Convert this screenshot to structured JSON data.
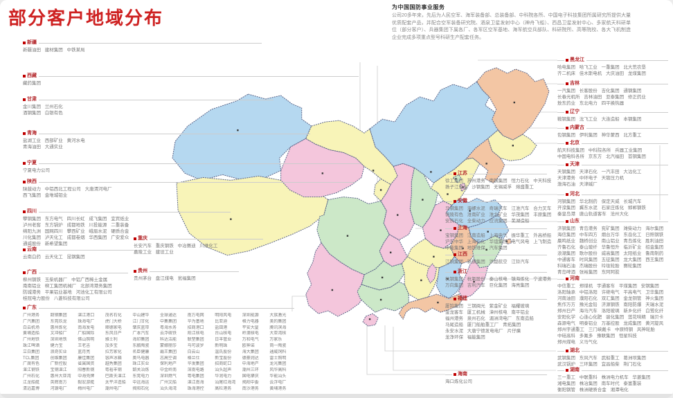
{
  "title": "部分客户地域分布",
  "intro": {
    "heading": "为中国国防事业服务",
    "body": "公司20多年来，先后为人民空军、海军装备部、总装备部、中科院各所、中国电子科技集团所属研究所提供大量优质配套产品，并配合空军装备研究院、酒泉卫星发射中心（神舟飞船）、西昌卫星发射中心、多家航天科研单位（部分客户）、兵器集团下属各厂、各军区空军基地、海军航空兵部队、科研院所、高等院校、各大飞机制造企业完成多项重点型号科研生产配套任务。"
  },
  "colors": {
    "title_red": "#ce2121",
    "label_red": "#b3262a",
    "bullet_red": "#c00000",
    "leader_gray": "#cccccc",
    "body_gray": "#787878",
    "map_stroke": "#5a6488",
    "fill_blue": "#b5d8f0",
    "fill_yellow": "#f8f4b8",
    "fill_pink": "#f4c6dc",
    "fill_salmon": "#f3c6a4",
    "fill_green": "#cce8c8"
  },
  "columns": {
    "left": [
      {
        "id": "xinjiang",
        "label": "新疆",
        "lines": [
          "新疆油田 建材集团 中铁某局"
        ]
      },
      {
        "id": "xizang",
        "label": "西藏",
        "lines": [
          "藏药集团"
        ]
      },
      {
        "id": "gansu",
        "label": "甘肃",
        "lines": [
          "金川集团 兰州石化",
          "酒钢集团 白银有色"
        ]
      },
      {
        "id": "qinghai",
        "label": "青海",
        "lines": [
          "盐湖工业 西部矿业 黄河水电",
          "青海油田 大通实业"
        ]
      },
      {
        "id": "ningxia",
        "label": "宁夏",
        "lines": [
          "宁夏电力公司"
        ]
      },
      {
        "id": "shaanxi",
        "label": "陕西",
        "lines": [
          "陕鼓动力 中铝西北工程公司 大唐渭河电厂",
          "西飞集团 金堆城钼业"
        ]
      },
      {
        "id": "sichuan",
        "label": "四川",
        "lines": [
          "攀钢集团 东方电气 四川长虹 成飞集团 宜宾纸业",
          "泸州老窖 东方锅炉 成都地铁 川投能源 二重装备",
          "绵阳九洲 国网四川 攀西矿业 峨眉水泥 硬质合金",
          "川化集团 泸天化工 成都卷烟 华西集团 广安爱众",
          "通威股份 新希望集团"
        ]
      },
      {
        "id": "yunnan",
        "label": "云南",
        "lines": [
          "云南白药 云天化工 昆钢集团"
        ]
      },
      {
        "id": "guangxi",
        "label": "广西",
        "lines": [
          "柳州钢铁 玉柴机器厂 中铝广西稀土金属",
          "南南铝业 柳工集团机械厂 北部湾港务集团",
          "防城港务 平果铝业基地 河池化工有限公司",
          "桂冠电力股份 八菱科技有限公司"
        ]
      }
    ],
    "inmap": [
      {
        "id": "chongqing",
        "label": "重庆",
        "lines": [
          "长安汽车 重庆钢铁 中冶赛迪 川维化工",
          "嘉陵工业 建设工业"
        ]
      },
      {
        "id": "guizhou",
        "label": "贵州",
        "lines": [
          "贵州茅台 盘江煤电 瓮福集团"
        ]
      }
    ],
    "middle": [
      {
        "id": "jiangsu",
        "label": "江苏",
        "lines": [
          "徐工集团 苏州港务 南钢集团 恒力石化 中天科技",
          "扬子江船业 沙钢集团 无锡威孚 熔盛重工"
        ]
      },
      {
        "id": "anhui",
        "label": "安徽",
        "lines": [
          "马钢集团 海螺水泥 奇瑞汽车 江淮汽车 合力叉车",
          "铜陵有色 淮南矿业 淮北矿业 华茂集团 丰原集团",
          "安庆石化 全柴动力 应流集团 芜湖造船"
        ]
      },
      {
        "id": "shanghai",
        "label": "上海",
        "lines": [
          "宝钢集团 江南造船 上海电气 振华重工 外高桥船",
          "沪东中华 上海石化 华谊集团 电气风电 上飞制造",
          "申能集团 地铁维保 汽车集团"
        ]
      },
      {
        "id": "jiangxi",
        "label": "江西",
        "lines": [
          "江铜集团 新钢集团 洪都航空 江铃汽车"
        ]
      },
      {
        "id": "zhejiang",
        "label": "浙江",
        "lines": [
          "杭钢集团 杭氧股份 秦山核电 镇海炼化 宁波港务",
          "万向集团 吉利汽车 巨化集团 海亮集团"
        ]
      },
      {
        "id": "fujian",
        "label": "福建",
        "lines": [
          "厦钨集团 三钢闽光 紫金矿业 福耀玻璃",
          "金龙客车 厦工机械 漳州核电 南平铝业",
          "福州港务 泉州石化 湄洲湾电厂 东南造船",
          "马尾造船 厦门船舶重工厂 青拓集团",
          "永安水泥 大唐宁德发电电厂 片仔癀",
          "龙净环保 福能集团"
        ]
      },
      {
        "id": "hainan",
        "label": "海南",
        "lines": [
          "海口炼化公司"
        ]
      }
    ],
    "right": [
      {
        "id": "heilongjiang",
        "label": "黑龙江",
        "lines": [
          "哈电集团 哈飞工业 一重集团 北大荒农垦",
          "齐二机床 佳木斯电机 大庆油田 龙煤集团"
        ]
      },
      {
        "id": "jilin",
        "label": "吉林",
        "lines": [
          "一汽集团 长客股份 吉化集团 通钢集团",
          "长春光机所 吉林油田 亚泰集团 修正药业",
          "敖东药业 东北电力 四平换热器"
        ]
      },
      {
        "id": "liaoning",
        "label": "辽宁",
        "lines": [
          "鞍钢集团 沈飞工业 大连造船 本钢集团"
        ]
      },
      {
        "id": "neimenggu",
        "label": "内蒙古",
        "lines": [
          "包钢集团 伊利集团 神华蒙西 北方重工"
        ]
      },
      {
        "id": "beijing",
        "label": "北京",
        "lines": [
          "航天科技集团 中科院各所 兵器工业集团",
          "中国电科各所 京东方 北汽福田 首钢集团"
        ]
      },
      {
        "id": "tianjin",
        "label": "天津",
        "lines": [
          "天钢集团 天津石化 一汽丰田 大沽化工",
          "天津港务 中环电子 天锻压力机",
          "渤海石油 天津碱厂"
        ]
      },
      {
        "id": "hebei",
        "label": "河北",
        "lines": [
          "河钢集团 华北制药 保定天威 长城汽车",
          "开滦集团 冀东水泥 石家庄炼化 邯郸钢铁",
          "秦皇岛港 唐山轨道客车 沧州大化"
        ]
      },
      {
        "id": "shandong",
        "label": "山东",
        "lines": [
          "济钢集团 青岛港务 兖矿集团 潍柴动力 海尔集团",
          "海信集团 中车四方 烟台万华 东岳化工 日照钢铁",
          "晨鸣纸业 魏桥创业 南山铝业 青岛炼化 胜利油田",
          "齐鲁石化 泰山玻纤 华鲁恒升 临沂矿业 招金集团",
          "浪潮集团 歌尔股份 威高集团 太阳纸业 鲁南制药",
          "中通客车 时风集团 五征集团 龙大集团 西王集团",
          "科瑞石油 杰瑞股份 玲珑轮胎 赛轮集团",
          "青岛啤酒 张裕集团 东阿阿胶"
        ]
      },
      {
        "id": "henan",
        "label": "河南",
        "lines": [
          "中信重工 郑煤机 宇通客车 平煤集团 安钢集团",
          "洛阳轴承 中铝洛阳 许继电气 平高电气 卫华集团",
          "河南油田 濮阳石化 双汇集团 金龙铜管 神火集团",
          "焦作万方 豫光金铅 济源钢铁 南阳防爆 天瑞水泥",
          "郑州日产 海马汽车 洛阳玻璃 新乡化纤 白鹭化纤",
          "安阳化学 心连心化肥 骏化集团 莲花味精 瑞贝卡",
          "森源电气 明泰铝业 万基控股 龙成集团 黄河旋风",
          "郑州宇通重工 三门峡戴卡 中原特钢 风神轮胎",
          "中硅高科 多氟多 豫联集团 恒星科技",
          "郑州煤电 义马气化"
        ]
      },
      {
        "id": "hubei",
        "label": "湖北",
        "lines": [
          "武钢集团 东风汽车 武船重工 葛洲坝集团",
          "武汉锅炉 三环集团 宜昌船柴 荆门石化"
        ]
      },
      {
        "id": "hunan",
        "label": "湖南",
        "lines": [
          "三一重工 中联重科 株洲电力机车 华菱集团",
          "湘电集团 株冶集团 南车时代 泰富重装",
          "衡阳钢管 株洲硬质合金 湘潭电化"
        ]
      }
    ]
  },
  "bottom": {
    "label": "广东",
    "rows": [
      [
        "广州港务",
        "韶钢集团",
        "湛江港口",
        "茂名石化",
        "中山建华",
        "全球通达",
        "南方电网",
        "明阳风电",
        "深圳能源",
        "大族激光"
      ],
      [
        "广汽集团",
        "东莞玖龙",
        "珠海电厂",
        "虎门大桥",
        "江门甘化",
        "中集集团",
        "华为基地",
        "比亚迪",
        "格力电器",
        "美的集团"
      ],
      [
        "白云机场",
        "惠州炼化",
        "南海发电",
        "顺德家电",
        "肇庆蓝带",
        "粤海水务",
        "招商港口",
        "盐田港",
        "平安大厦",
        "腾讯滨海"
      ],
      [
        "黄埔造船",
        "文冲船厂",
        "广船国际",
        "东风日产",
        "广本汽车",
        "云浮硫铁",
        "阳江核电",
        "台山核电",
        "岭澳核电",
        "大亚湾核"
      ],
      [
        "广州地铁",
        "深圳地铁",
        "佛山照明",
        "雅士利",
        "海印集团",
        "科达洁能",
        "联塑集团",
        "日丰管业",
        "万和电气",
        "万家乐"
      ],
      [
        "珠江啤酒",
        "健力宝",
        "王老吉",
        "加多宝",
        "东鹏陶瓷",
        "蒙娜丽莎",
        "马可波罗",
        "新明珠",
        "欧神诺",
        "简一陶瓷"
      ],
      [
        "立白集团",
        "浪奇实业",
        "蓝月亮",
        "拉芳家化",
        "名臣健康",
        "霸王集团",
        "白云山",
        "温氏股份",
        "海大集团",
        "通威饲料"
      ],
      [
        "TCL集团",
        "创维集团",
        "康佳集团",
        "容声冰箱",
        "奥马电器",
        "志高空调",
        "格兰仕",
        "新宝股份",
        "德豪润达",
        "雷士照明"
      ],
      [
        "广晟有色",
        "广新控股",
        "省属国资",
        "越秀集团",
        "珠江实业",
        "保利地产",
        "华发集团",
        "招商蛇口",
        "中海地产",
        "龙光集团"
      ],
      [
        "湛江钢铁",
        "宝钢湛江",
        "阳春新钢",
        "粤裕丰钢",
        "韶关冶炼",
        "中金岭南",
        "深南电路",
        "汕头超声",
        "潮州三环",
        "风华高科"
      ],
      [
        "广州石化",
        "惠州大亚湾",
        "中海壳牌",
        "巴斯夫湛江",
        "东莞电力",
        "深圳燃气",
        "粤电集团",
        "华润电力",
        "国电肇庆",
        "华能汕头"
      ],
      [
        "江龙船艇",
        "英辉南方",
        "毅宏游艇",
        "太平洋造船",
        "中远海运",
        "广州文船",
        "湛江南海",
        "汕尾红海湾",
        "揭阳中委",
        "云浮电厂"
      ],
      [
        "清远嘉博",
        "河源电厂",
        "梅州电厂",
        "潮州电厂",
        "揭阳石化",
        "汕头海湾",
        "珠海港控",
        "高栏港务",
        "南沙港务",
        "黄埔港务"
      ]
    ]
  },
  "map": {
    "provinces": [
      {
        "id": "xinjiang",
        "name": "新疆",
        "color": "#b5d8f0"
      },
      {
        "id": "xizang",
        "name": "西藏",
        "color": "#f8f4b8"
      },
      {
        "id": "qinghai",
        "name": "青海",
        "color": "#f4c6dc"
      },
      {
        "id": "gansu",
        "name": "甘肃",
        "color": "#f8f4b8"
      },
      {
        "id": "neimenggu",
        "name": "内蒙古",
        "color": "#b5d8f0"
      },
      {
        "id": "heilongjiang",
        "name": "黑龙江",
        "color": "#f3c6a4"
      },
      {
        "id": "jilin",
        "name": "吉林",
        "color": "#f8f4b8"
      },
      {
        "id": "liaoning",
        "name": "辽宁",
        "color": "#f3c6a4"
      },
      {
        "id": "hebei",
        "name": "河北",
        "color": "#f8f4b8"
      },
      {
        "id": "beijing",
        "name": "北京",
        "color": "#cce8c8"
      },
      {
        "id": "tianjin",
        "name": "天津",
        "color": "#f4c6dc"
      },
      {
        "id": "shanxi",
        "name": "山西",
        "color": "#cce8c8"
      },
      {
        "id": "shaanxi",
        "name": "陕西",
        "color": "#f4c6dc"
      },
      {
        "id": "ningxia",
        "name": "宁夏",
        "color": "#f8f4b8"
      },
      {
        "id": "shandong",
        "name": "山东",
        "color": "#b5d8f0"
      },
      {
        "id": "henan",
        "name": "河南",
        "color": "#f4c6dc"
      },
      {
        "id": "jiangsu",
        "name": "江苏",
        "color": "#b5d8f0"
      },
      {
        "id": "shanghai",
        "name": "上海",
        "color": "#f3c6a4"
      },
      {
        "id": "anhui",
        "name": "安徽",
        "color": "#f3c6a4"
      },
      {
        "id": "hubei",
        "name": "湖北",
        "color": "#f8f4b8"
      },
      {
        "id": "chongqing",
        "name": "重庆",
        "color": "#f4c6dc"
      },
      {
        "id": "sichuan",
        "name": "四川",
        "color": "#cce8c8"
      },
      {
        "id": "guizhou",
        "name": "贵州",
        "color": "#cce8c8"
      },
      {
        "id": "yunnan",
        "name": "云南",
        "color": "#f4c6dc"
      },
      {
        "id": "hunan",
        "name": "湖南",
        "color": "#f8f4b8"
      },
      {
        "id": "jiangxi",
        "name": "江西",
        "color": "#b5d8f0"
      },
      {
        "id": "zhejiang",
        "name": "浙江",
        "color": "#cce8c8"
      },
      {
        "id": "fujian",
        "name": "福建",
        "color": "#f4c6dc"
      },
      {
        "id": "guangdong",
        "name": "广东",
        "color": "#f3c6a4"
      },
      {
        "id": "guangxi",
        "name": "广西",
        "color": "#cce8c8"
      },
      {
        "id": "hainan",
        "name": "海南",
        "color": "#f4c6dc"
      },
      {
        "id": "taiwan",
        "name": "台湾",
        "color": "#f4c6dc"
      }
    ]
  }
}
